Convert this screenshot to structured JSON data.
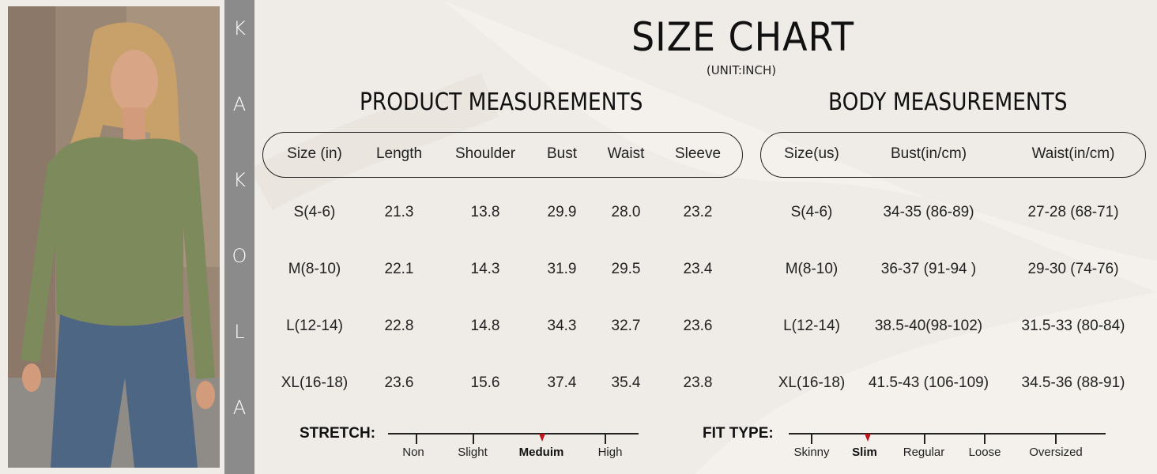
{
  "brand": [
    "K",
    "A",
    "K",
    "O",
    "L",
    "A"
  ],
  "title": "SIZE CHART",
  "unit": "(UNIT:INCH)",
  "product": {
    "title": "PRODUCT MEASUREMENTS",
    "headers": [
      "Size (in)",
      "Length",
      "Shoulder",
      "Bust",
      "Waist",
      "Sleeve"
    ],
    "rows": [
      [
        "S(4-6)",
        "21.3",
        "13.8",
        "29.9",
        "28.0",
        "23.2"
      ],
      [
        "M(8-10)",
        "22.1",
        "14.3",
        "31.9",
        "29.5",
        "23.4"
      ],
      [
        "L(12-14)",
        "22.8",
        "14.8",
        "34.3",
        "32.7",
        "23.6"
      ],
      [
        "XL(16-18)",
        "23.6",
        "15.6",
        "37.4",
        "35.4",
        "23.8"
      ]
    ]
  },
  "body": {
    "title": "BODY MEASUREMENTS",
    "headers": [
      "Size(us)",
      "Bust(in/cm)",
      "Waist(in/cm)"
    ],
    "rows": [
      [
        "S(4-6)",
        "34-35 (86-89)",
        "27-28 (68-71)"
      ],
      [
        "M(8-10)",
        "36-37 (91-94 )",
        "29-30 (74-76)"
      ],
      [
        "L(12-14)",
        "38.5-40(98-102)",
        "31.5-33 (80-84)"
      ],
      [
        "XL(16-18)",
        "41.5-43 (106-109)",
        "34.5-36 (88-91)"
      ]
    ]
  },
  "stretch": {
    "label": "STRETCH:",
    "options": [
      "Non",
      "Slight",
      "Meduim",
      "High"
    ],
    "selected": "Meduim"
  },
  "fit": {
    "label": "FIT TYPE:",
    "options": [
      "Skinny",
      "Slim",
      "Regular",
      "Loose",
      "Oversized"
    ],
    "selected": "Slim"
  },
  "colors": {
    "background": "#efebe6",
    "strip": "#8b8b8b",
    "marker": "#c0141c",
    "top": "#7d8a5c"
  }
}
